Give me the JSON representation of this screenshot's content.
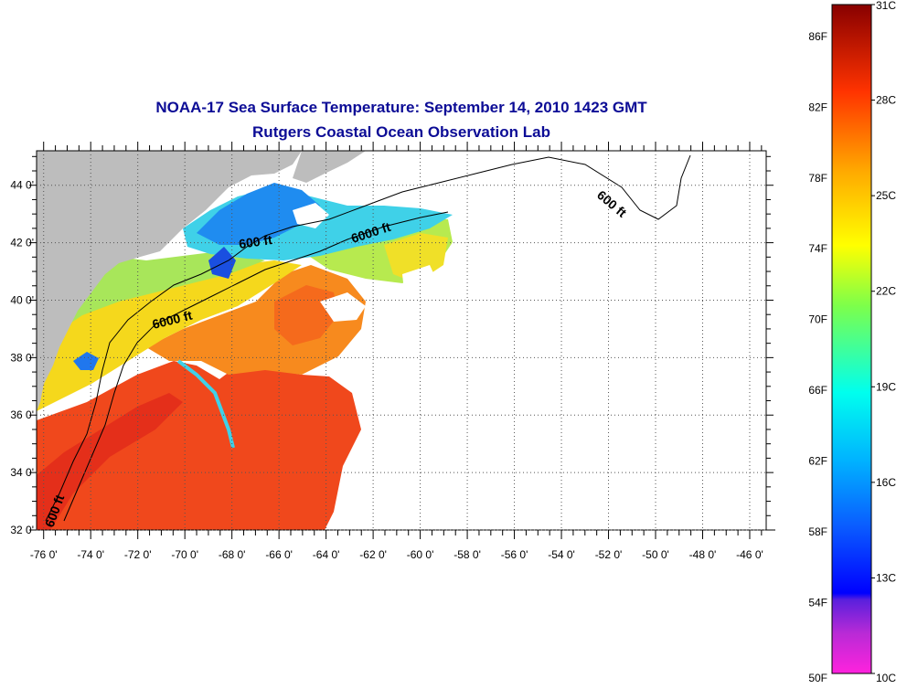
{
  "title": "NOAA-17 Sea Surface Temperature:  September 14, 2010 1423 GMT",
  "subtitle": "Rutgers Coastal Ocean Observation Lab",
  "axes": {
    "lat_labels": [
      "44 0'",
      "42 0'",
      "40 0'",
      "38 0'",
      "36 0'",
      "34 0'",
      "32 0'"
    ],
    "lat_values": [
      44,
      42,
      40,
      38,
      36,
      34,
      32
    ],
    "lon_labels": [
      "-76 0'",
      "-74 0'",
      "-72 0'",
      "-70 0'",
      "-68 0'",
      "-66 0'",
      "-64 0'",
      "-62 0'",
      "-60 0'",
      "-58 0'",
      "-56 0'",
      "-54 0'",
      "-52 0'",
      "-50 0'",
      "-48 0'",
      "-46 0'"
    ],
    "lon_values": [
      -76,
      -74,
      -72,
      -70,
      -68,
      -66,
      -64,
      -62,
      -60,
      -58,
      -56,
      -54,
      -52,
      -50,
      -48,
      -46
    ],
    "lat_range": [
      32,
      45.2
    ],
    "lon_range": [
      -76.3,
      -45.3
    ],
    "grid": "dotted"
  },
  "contour_labels": {
    "c1": "600 ft",
    "c2": "6000 ft",
    "c3": "600 ft",
    "c4": "6000 ft",
    "c5": "600 ft"
  },
  "colorbar": {
    "celsius_labels": [
      "31C",
      "28C",
      "25C",
      "22C",
      "19C",
      "16C",
      "13C",
      "10C"
    ],
    "fahrenheit_labels": [
      "86F",
      "82F",
      "78F",
      "74F",
      "70F",
      "66F",
      "62F",
      "58F",
      "54F",
      "50F"
    ],
    "colors": [
      "#ff22dd",
      "#8822cc",
      "#0000ff",
      "#00aaff",
      "#00ffee",
      "#88ff44",
      "#ffff00",
      "#ff9900",
      "#ff3300",
      "#880000"
    ]
  },
  "palette": {
    "land": "#bdbdbd",
    "warm": "#f0481c",
    "orange": "#f78a1e",
    "yellow": "#f5d81c",
    "green": "#a8e65a",
    "cyan": "#3fd1e8",
    "blue": "#1f8cf0",
    "deep_blue": "#1a4fe0"
  }
}
